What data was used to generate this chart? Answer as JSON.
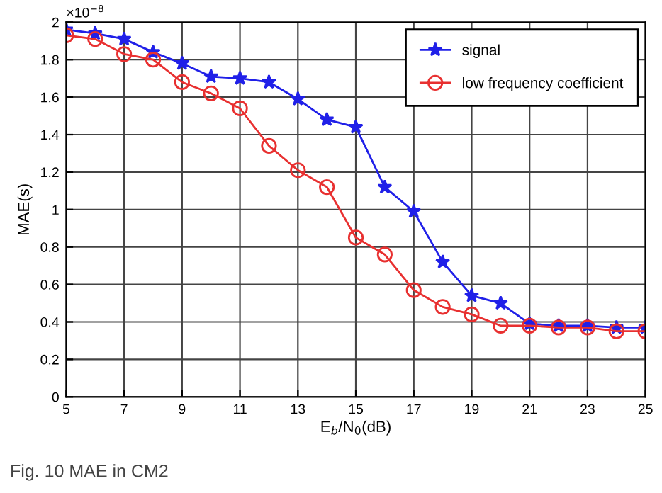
{
  "chart_data": {
    "type": "line",
    "xlabel": "E$_{b}$/N$_{0}$(dB)",
    "ylabel": "MAE(s)",
    "x": [
      5,
      6,
      7,
      8,
      9,
      10,
      11,
      12,
      13,
      14,
      15,
      16,
      17,
      18,
      19,
      20,
      21,
      22,
      23,
      24,
      25
    ],
    "series": [
      {
        "name": "signal",
        "color": "#2020e8",
        "marker": "star",
        "values": [
          1.96,
          1.94,
          1.91,
          1.84,
          1.78,
          1.71,
          1.7,
          1.68,
          1.59,
          1.48,
          1.44,
          1.12,
          0.99,
          0.72,
          0.54,
          0.5,
          0.39,
          0.38,
          0.38,
          0.37,
          0.37
        ]
      },
      {
        "name": "low frequency coefficient",
        "color": "#e83030",
        "marker": "circle",
        "values": [
          1.93,
          1.91,
          1.83,
          1.8,
          1.68,
          1.62,
          1.54,
          1.34,
          1.21,
          1.12,
          0.85,
          0.76,
          0.57,
          0.48,
          0.44,
          0.38,
          0.38,
          0.37,
          0.37,
          0.35,
          0.35
        ]
      }
    ],
    "xlim": [
      5,
      25
    ],
    "xticks": [
      5,
      7,
      9,
      11,
      13,
      15,
      17,
      19,
      21,
      23,
      25
    ],
    "ylim": [
      0,
      2
    ],
    "yticks": [
      0,
      0.2,
      0.4,
      0.6,
      0.8,
      1,
      1.2,
      1.4,
      1.6,
      1.8,
      2
    ],
    "grid": true,
    "legend": "top right",
    "line_style": "solid",
    "annotations": [
      "×10$^{−8}$",
      "Fig. 10 MAE in CM2"
    ]
  }
}
